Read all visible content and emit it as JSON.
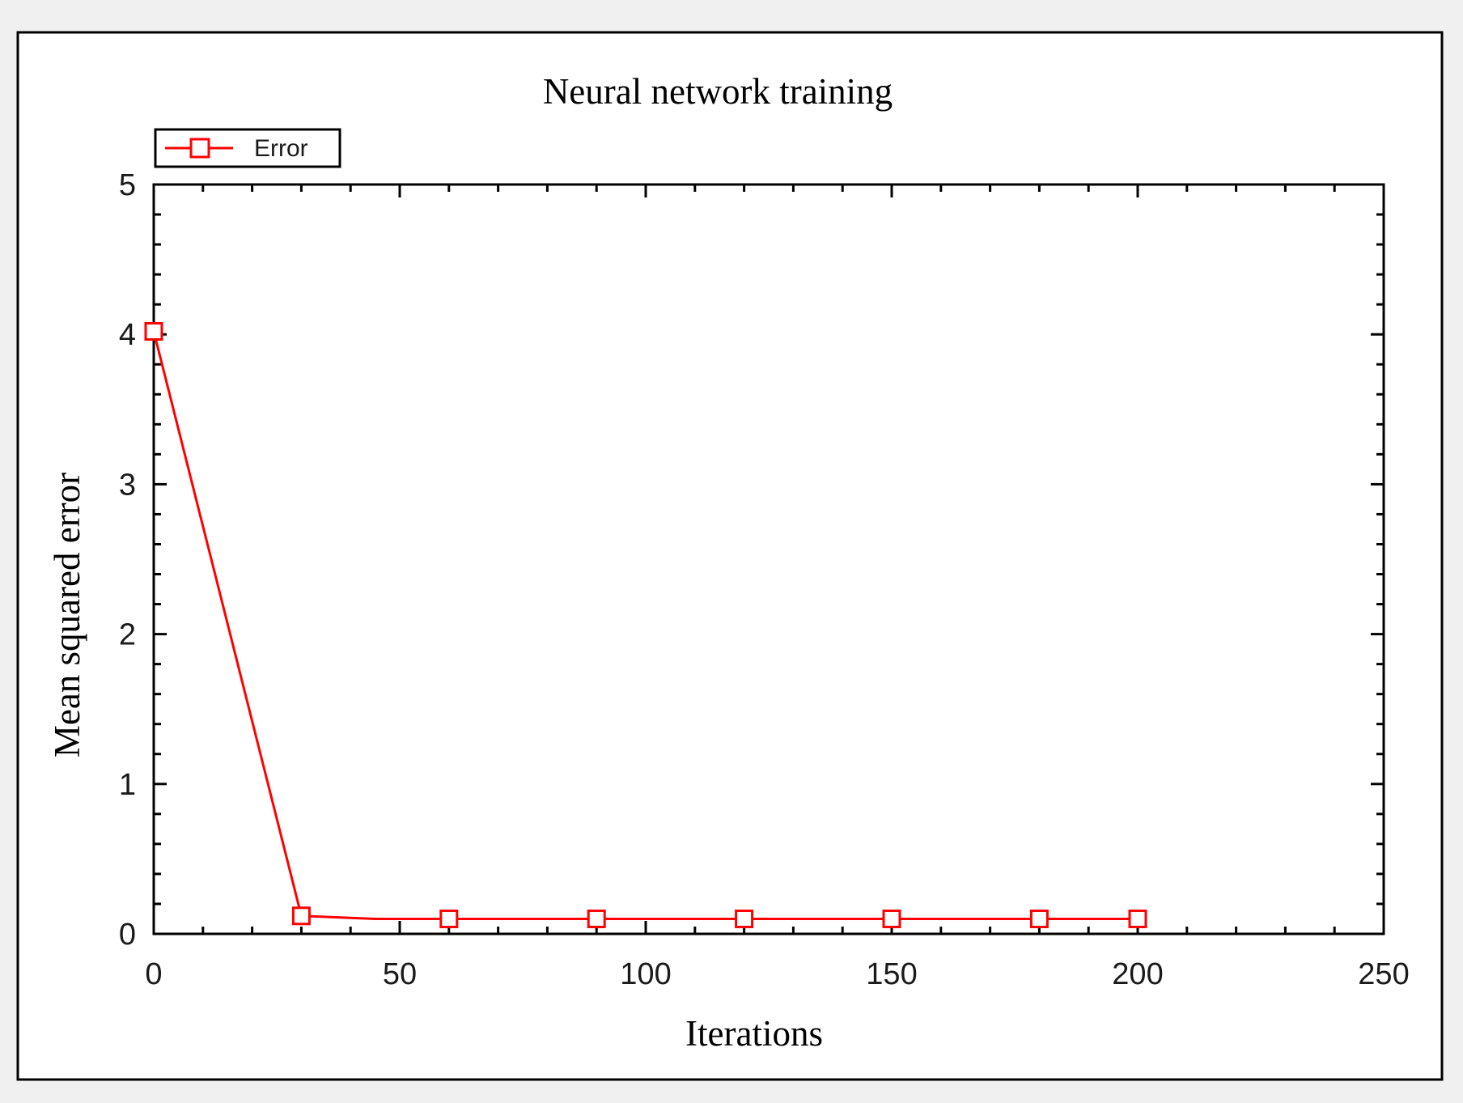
{
  "chart_data": {
    "type": "line",
    "title": "Neural network training",
    "xlabel": "Iterations",
    "ylabel": "Mean squared error",
    "xlim": [
      0,
      250
    ],
    "ylim": [
      0,
      5
    ],
    "x_ticks": [
      "0",
      "50",
      "100",
      "150",
      "200",
      "250"
    ],
    "y_ticks": [
      "0",
      "1",
      "2",
      "3",
      "4",
      "5"
    ],
    "grid": false,
    "legend_position": "top-left",
    "series": [
      {
        "name": "Error",
        "color": "#ff0000",
        "marker": "square",
        "x": [
          0,
          30,
          45,
          60,
          90,
          120,
          150,
          180,
          200
        ],
        "y": [
          4.02,
          0.12,
          0.1,
          0.1,
          0.1,
          0.1,
          0.1,
          0.1,
          0.1
        ],
        "marker_x": [
          0,
          30,
          60,
          90,
          120,
          150,
          180,
          200
        ],
        "marker_y": [
          4.02,
          0.12,
          0.1,
          0.1,
          0.1,
          0.1,
          0.1,
          0.1
        ]
      }
    ]
  }
}
